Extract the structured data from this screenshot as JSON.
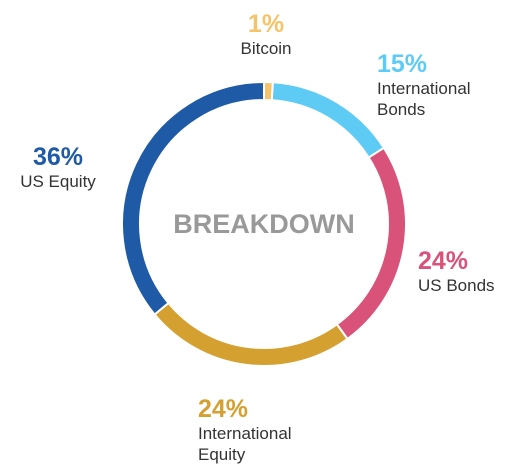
{
  "chart_data": {
    "type": "donut",
    "title": "BREAKDOWN",
    "categories": [
      "Bitcoin",
      "International Bonds",
      "US Bonds",
      "International Equity",
      "US Equity"
    ],
    "values": [
      1,
      15,
      24,
      24,
      36
    ],
    "value_labels": [
      "1%",
      "15%",
      "24%",
      "24%",
      "36%"
    ],
    "colors": [
      "#f5c46a",
      "#5ecbf5",
      "#d9527a",
      "#d4a030",
      "#1f5aa6"
    ]
  }
}
